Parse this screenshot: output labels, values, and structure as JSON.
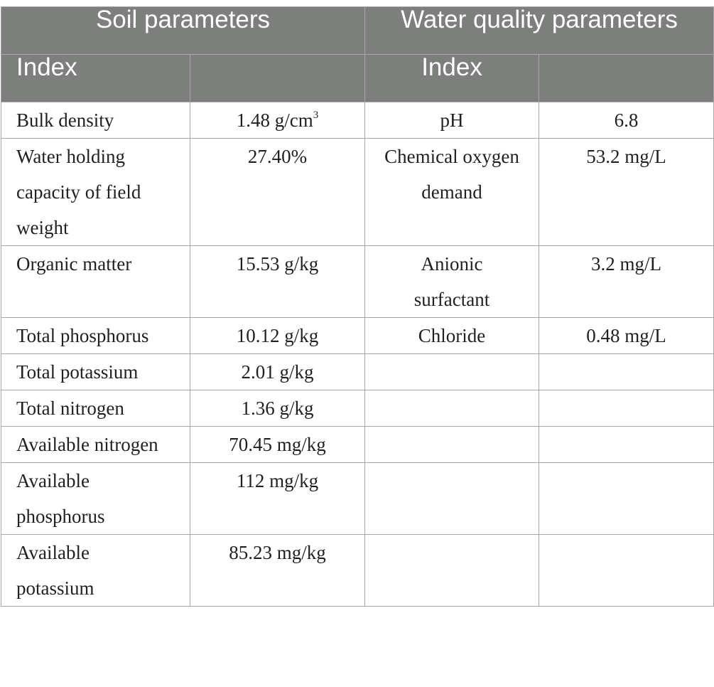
{
  "header": {
    "soil_group": "Soil parameters",
    "water_group": "Water quality parameters",
    "soil_index": "Index",
    "soil_value": "",
    "water_index": "Index",
    "water_value": ""
  },
  "rows": [
    {
      "soil_index": "Bulk density",
      "soil_value": "1.48 g/cm",
      "soil_value_sup": "3",
      "water_index": "pH",
      "water_value": "6.8"
    },
    {
      "soil_index": "Water holding capacity of field weight",
      "soil_value": "27.40%",
      "water_index": "Chemical oxygen demand",
      "water_value": "53.2 mg/L"
    },
    {
      "soil_index": "Organic matter",
      "soil_value": "15.53 g/kg",
      "water_index": "Anionic surfactant",
      "water_value": "3.2 mg/L"
    },
    {
      "soil_index": "Total phosphorus",
      "soil_value": "10.12 g/kg",
      "water_index": "Chloride",
      "water_value": "0.48 mg/L"
    },
    {
      "soil_index": "Total potassium",
      "soil_value": "2.01 g/kg",
      "water_index": "",
      "water_value": ""
    },
    {
      "soil_index": "Total nitrogen",
      "soil_value": "1.36 g/kg",
      "water_index": "",
      "water_value": ""
    },
    {
      "soil_index": "Available nitrogen",
      "soil_value": "70.45 mg/kg",
      "water_index": "",
      "water_value": ""
    },
    {
      "soil_index": "Available phosphorus",
      "soil_value": "112 mg/kg",
      "water_index": "",
      "water_value": ""
    },
    {
      "soil_index": "Available potassium",
      "soil_value": "85.23 mg/kg",
      "water_index": "",
      "water_value": ""
    }
  ]
}
